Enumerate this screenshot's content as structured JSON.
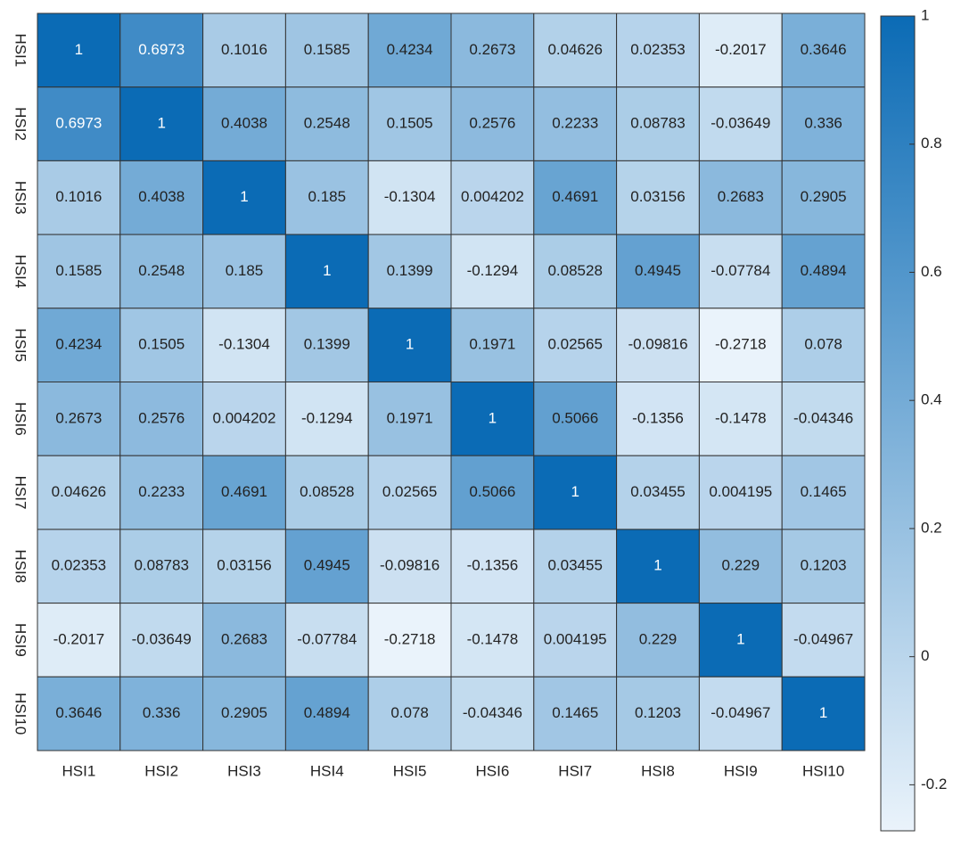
{
  "chart_data": {
    "type": "heatmap",
    "x_categories": [
      "HSI1",
      "HSI2",
      "HSI3",
      "HSI4",
      "HSI5",
      "HSI6",
      "HSI7",
      "HSI8",
      "HSI9",
      "HSI10"
    ],
    "y_categories": [
      "HSI1",
      "HSI2",
      "HSI3",
      "HSI4",
      "HSI5",
      "HSI6",
      "HSI7",
      "HSI8",
      "HSI9",
      "HSI10"
    ],
    "values": [
      [
        1,
        0.6973,
        0.1016,
        0.1585,
        0.4234,
        0.2673,
        0.04626,
        0.02353,
        -0.2017,
        0.3646
      ],
      [
        0.6973,
        1,
        0.4038,
        0.2548,
        0.1505,
        0.2576,
        0.2233,
        0.08783,
        -0.03649,
        0.336
      ],
      [
        0.1016,
        0.4038,
        1,
        0.185,
        -0.1304,
        0.004202,
        0.4691,
        0.03156,
        0.2683,
        0.2905
      ],
      [
        0.1585,
        0.2548,
        0.185,
        1,
        0.1399,
        -0.1294,
        0.08528,
        0.4945,
        -0.07784,
        0.4894
      ],
      [
        0.4234,
        0.1505,
        -0.1304,
        0.1399,
        1,
        0.1971,
        0.02565,
        -0.09816,
        -0.2718,
        0.078
      ],
      [
        0.2673,
        0.2576,
        0.004202,
        -0.1294,
        0.1971,
        1,
        0.5066,
        -0.1356,
        -0.1478,
        -0.04346
      ],
      [
        0.04626,
        0.2233,
        0.4691,
        0.08528,
        0.02565,
        0.5066,
        1,
        0.03455,
        0.004195,
        0.1465
      ],
      [
        0.02353,
        0.08783,
        0.03156,
        0.4945,
        -0.09816,
        -0.1356,
        0.03455,
        1,
        0.229,
        0.1203
      ],
      [
        -0.2017,
        -0.03649,
        0.2683,
        -0.07784,
        -0.2718,
        -0.1478,
        0.004195,
        0.229,
        1,
        -0.04967
      ],
      [
        0.3646,
        0.336,
        0.2905,
        0.4894,
        0.078,
        -0.04346,
        0.1465,
        0.1203,
        -0.04967,
        1
      ]
    ],
    "colormap": [
      "#eaf3fb",
      "#0b6bb5"
    ],
    "clim": [
      -0.2718,
      1
    ],
    "cticks": [
      -0.2,
      0,
      0.2,
      0.4,
      0.6,
      0.8,
      1
    ]
  }
}
